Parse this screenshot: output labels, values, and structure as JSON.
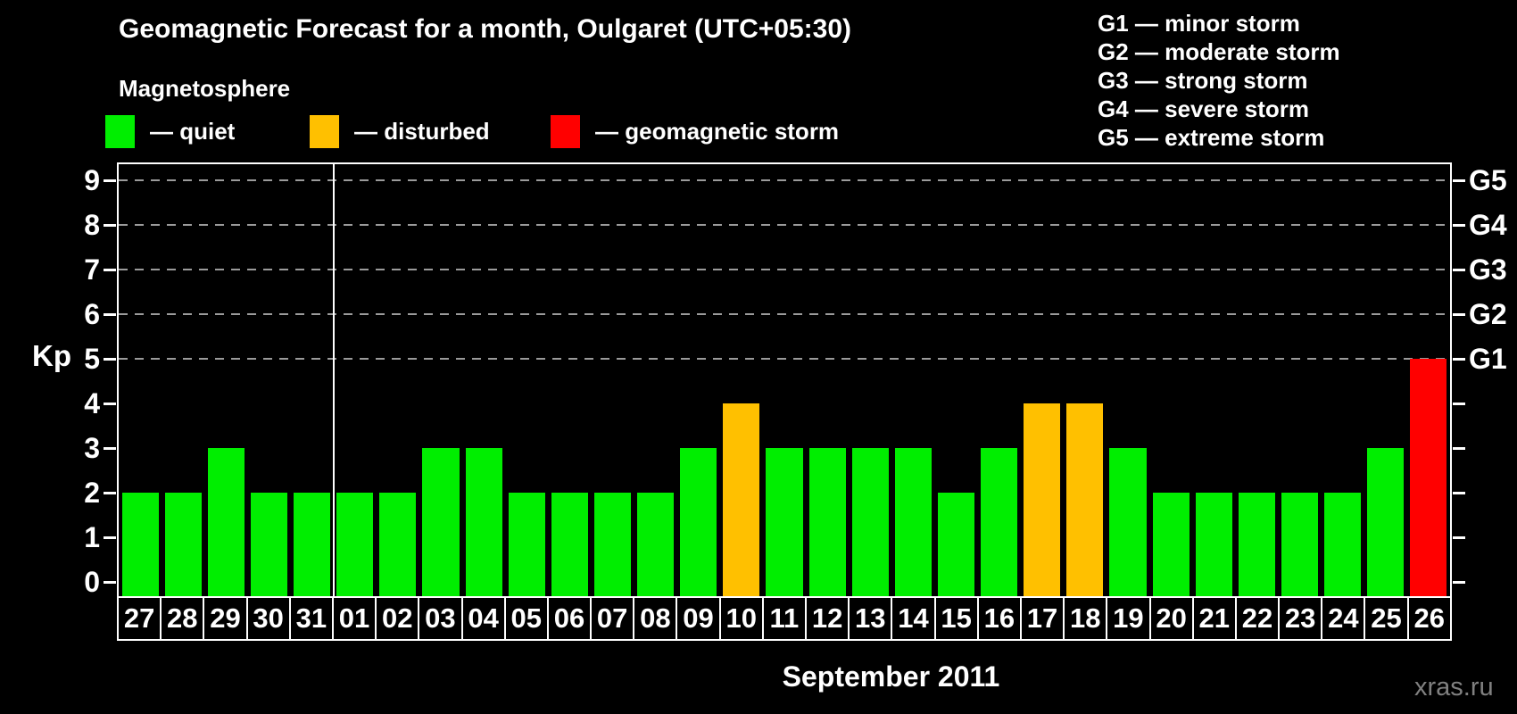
{
  "title": "Geomagnetic Forecast for a month, Oulgaret (UTC+05:30)",
  "magnetosphere": {
    "heading": "Magnetosphere",
    "items": [
      {
        "name": "quiet",
        "label": "— quiet",
        "color": "#00ee00"
      },
      {
        "name": "disturbed",
        "label": "— disturbed",
        "color": "#ffc000"
      },
      {
        "name": "storm",
        "label": "— geomagnetic storm",
        "color": "#ff0000"
      }
    ]
  },
  "storm_scale_legend": {
    "lines": [
      "G1 — minor storm",
      "G2 — moderate storm",
      "G3 — strong storm",
      "G4 — severe storm",
      "G5 — extreme storm"
    ]
  },
  "chart_data": {
    "type": "bar",
    "title": "Geomagnetic Forecast for a month, Oulgaret (UTC+05:30)",
    "ylabel": "Kp",
    "xlabel": "September 2011",
    "ylim": [
      0,
      9
    ],
    "y_ticks": [
      0,
      1,
      2,
      3,
      4,
      5,
      6,
      7,
      8,
      9
    ],
    "gridlines_kp": [
      5,
      6,
      7,
      8,
      9
    ],
    "right_axis": {
      "labels": [
        "G1",
        "G2",
        "G3",
        "G4",
        "G5"
      ],
      "kp_levels": [
        5,
        6,
        7,
        8,
        9
      ]
    },
    "legend_position": "top",
    "grid": "dashed horizontal at G-levels only",
    "month_separator_after_index": 4,
    "status_colors": {
      "quiet": "#00ee00",
      "disturbed": "#ffc000",
      "storm": "#ff0000"
    },
    "categories": [
      "27",
      "28",
      "29",
      "30",
      "31",
      "01",
      "02",
      "03",
      "04",
      "05",
      "06",
      "07",
      "08",
      "09",
      "10",
      "11",
      "12",
      "13",
      "14",
      "15",
      "16",
      "17",
      "18",
      "19",
      "20",
      "21",
      "22",
      "23",
      "24",
      "25",
      "26"
    ],
    "values": [
      2,
      2,
      3,
      2,
      2,
      2,
      2,
      3,
      3,
      2,
      2,
      2,
      2,
      3,
      4,
      3,
      3,
      3,
      3,
      2,
      3,
      4,
      4,
      3,
      2,
      2,
      2,
      2,
      2,
      3,
      5
    ],
    "bars": [
      {
        "day": "27",
        "kp": 2,
        "status": "quiet"
      },
      {
        "day": "28",
        "kp": 2,
        "status": "quiet"
      },
      {
        "day": "29",
        "kp": 3,
        "status": "quiet"
      },
      {
        "day": "30",
        "kp": 2,
        "status": "quiet"
      },
      {
        "day": "31",
        "kp": 2,
        "status": "quiet"
      },
      {
        "day": "01",
        "kp": 2,
        "status": "quiet"
      },
      {
        "day": "02",
        "kp": 2,
        "status": "quiet"
      },
      {
        "day": "03",
        "kp": 3,
        "status": "quiet"
      },
      {
        "day": "04",
        "kp": 3,
        "status": "quiet"
      },
      {
        "day": "05",
        "kp": 2,
        "status": "quiet"
      },
      {
        "day": "06",
        "kp": 2,
        "status": "quiet"
      },
      {
        "day": "07",
        "kp": 2,
        "status": "quiet"
      },
      {
        "day": "08",
        "kp": 2,
        "status": "quiet"
      },
      {
        "day": "09",
        "kp": 3,
        "status": "quiet"
      },
      {
        "day": "10",
        "kp": 4,
        "status": "disturbed"
      },
      {
        "day": "11",
        "kp": 3,
        "status": "quiet"
      },
      {
        "day": "12",
        "kp": 3,
        "status": "quiet"
      },
      {
        "day": "13",
        "kp": 3,
        "status": "quiet"
      },
      {
        "day": "14",
        "kp": 3,
        "status": "quiet"
      },
      {
        "day": "15",
        "kp": 2,
        "status": "quiet"
      },
      {
        "day": "16",
        "kp": 3,
        "status": "quiet"
      },
      {
        "day": "17",
        "kp": 4,
        "status": "disturbed"
      },
      {
        "day": "18",
        "kp": 4,
        "status": "disturbed"
      },
      {
        "day": "19",
        "kp": 3,
        "status": "quiet"
      },
      {
        "day": "20",
        "kp": 2,
        "status": "quiet"
      },
      {
        "day": "21",
        "kp": 2,
        "status": "quiet"
      },
      {
        "day": "22",
        "kp": 2,
        "status": "quiet"
      },
      {
        "day": "23",
        "kp": 2,
        "status": "quiet"
      },
      {
        "day": "24",
        "kp": 2,
        "status": "quiet"
      },
      {
        "day": "25",
        "kp": 3,
        "status": "quiet"
      },
      {
        "day": "26",
        "kp": 5,
        "status": "storm"
      }
    ]
  },
  "footer": {
    "month_label": "September 2011",
    "watermark": "xras.ru"
  }
}
